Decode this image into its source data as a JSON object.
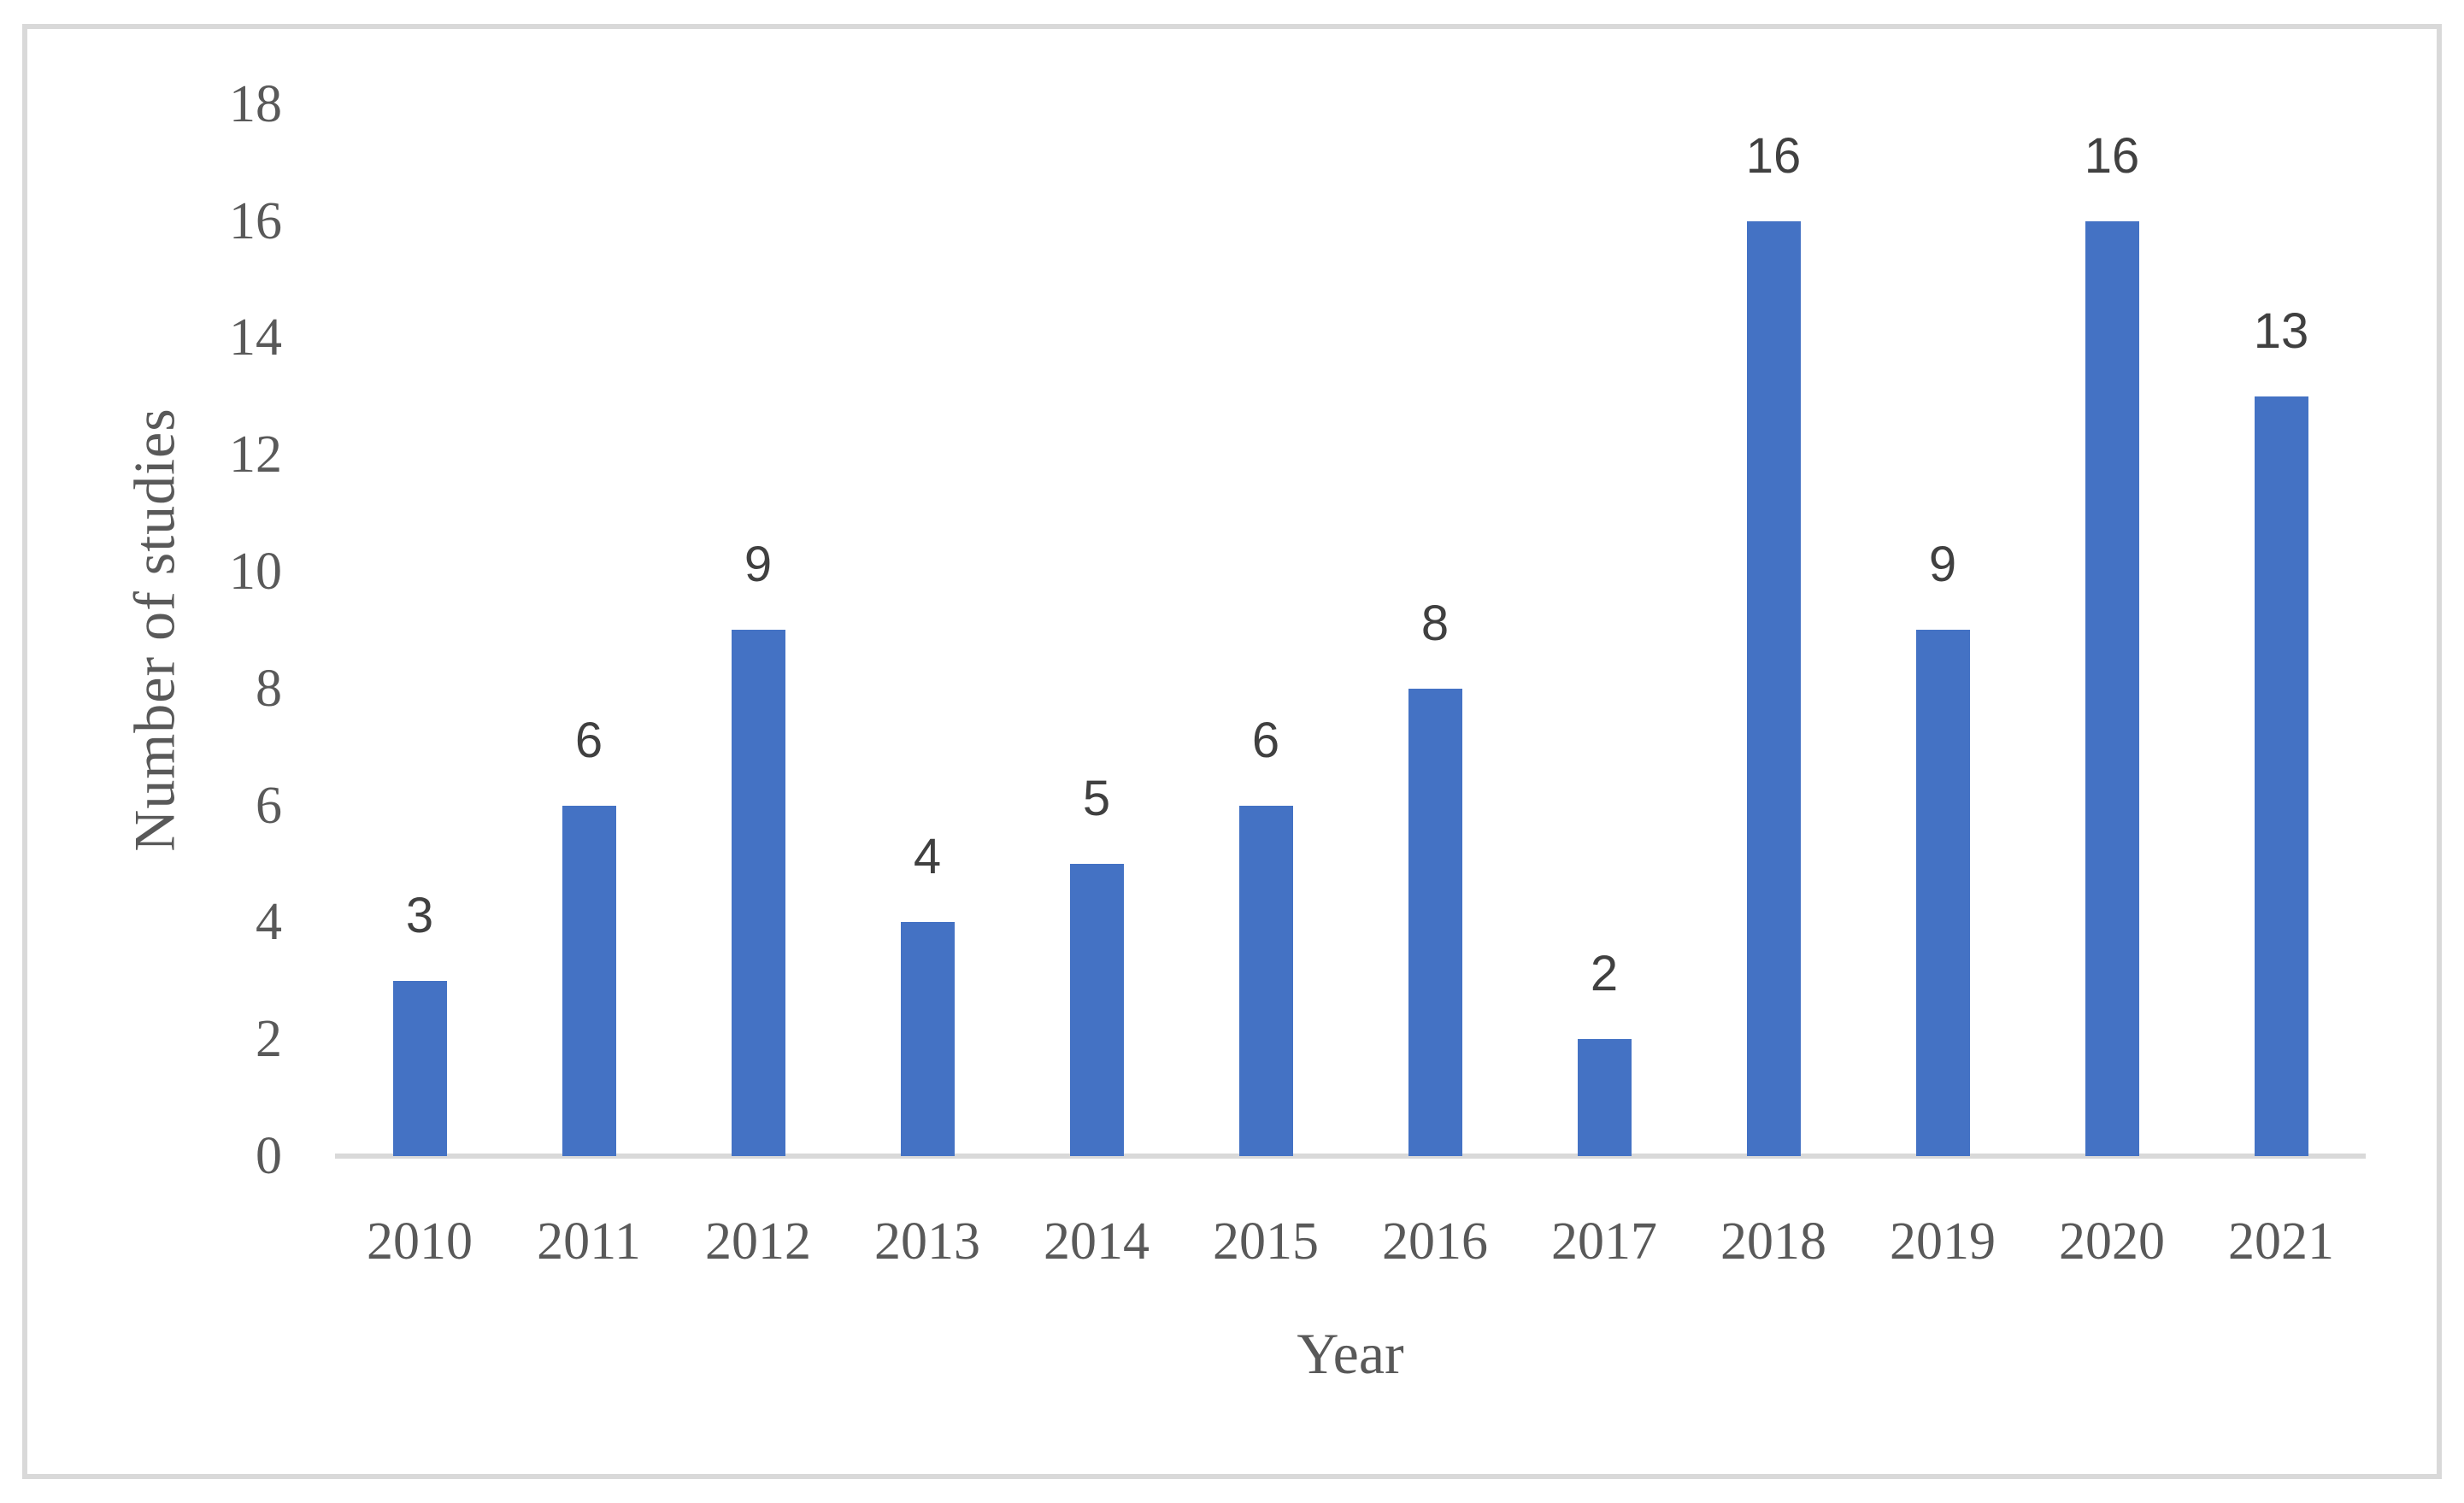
{
  "chart_data": {
    "type": "bar",
    "title": "",
    "categories": [
      "2010",
      "2011",
      "2012",
      "2013",
      "2014",
      "2015",
      "2016",
      "2017",
      "2018",
      "2019",
      "2020",
      "2021"
    ],
    "values": [
      3,
      6,
      9,
      4,
      5,
      6,
      8,
      2,
      16,
      9,
      16,
      13
    ],
    "xlabel": "Year",
    "ylabel": "Number of studies",
    "ylim": [
      0,
      18
    ],
    "yticks": [
      0,
      2,
      4,
      6,
      8,
      10,
      12,
      14,
      16,
      18
    ],
    "grid": false,
    "legend": false,
    "data_labels_visible": true,
    "colors": {
      "bar": "#4472C4",
      "axis_line": "#D9D9D9",
      "frame": "#D9D9D9",
      "axis_text": "#595959",
      "data_label_text": "#404040"
    }
  }
}
